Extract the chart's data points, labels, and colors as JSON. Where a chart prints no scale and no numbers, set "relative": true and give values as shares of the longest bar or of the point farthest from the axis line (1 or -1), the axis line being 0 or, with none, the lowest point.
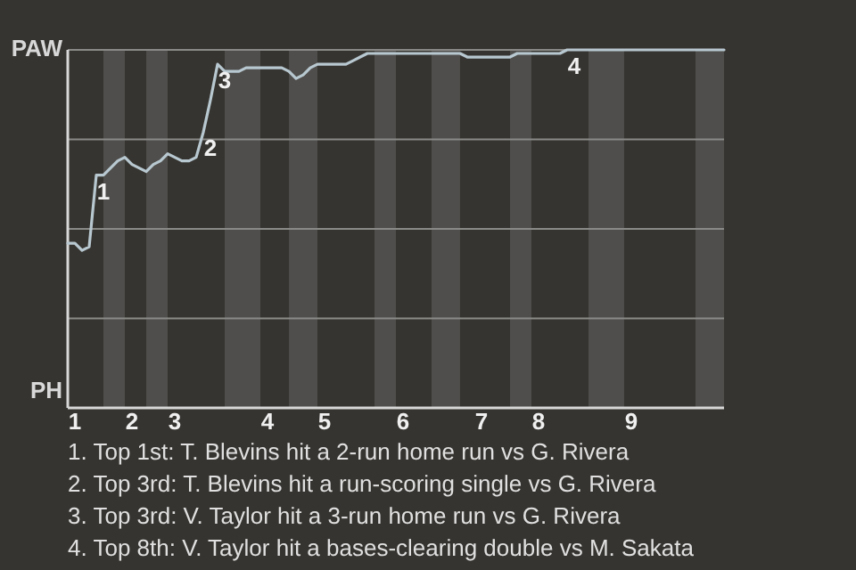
{
  "chart_data": {
    "type": "line",
    "relative": true,
    "categories": [
      null,
      "1",
      null,
      null,
      null,
      null,
      null,
      null,
      null,
      "2",
      null,
      null,
      null,
      null,
      null,
      "3",
      null,
      null,
      null,
      null,
      null,
      null,
      null,
      null,
      null,
      null,
      null,
      null,
      "4",
      null,
      null,
      null,
      null,
      null,
      null,
      null,
      "5",
      null,
      null,
      null,
      null,
      null,
      null,
      null,
      null,
      null,
      null,
      "6",
      null,
      null,
      null,
      null,
      null,
      null,
      null,
      null,
      null,
      null,
      "7",
      null,
      null,
      null,
      null,
      null,
      null,
      null,
      "8",
      null,
      null,
      null,
      null,
      null,
      null,
      null,
      null,
      null,
      null,
      null,
      null,
      "9",
      null,
      null,
      null,
      null,
      null,
      null,
      null,
      null,
      null,
      null,
      null,
      null,
      null
    ],
    "ylabel": "PAW",
    "xlabel": "PH",
    "grid": "y",
    "series": [
      {
        "color": "#b8c8d0",
        "values": [
          0.46,
          0.46,
          0.44,
          0.45,
          0.65,
          0.65,
          0.67,
          0.69,
          0.7,
          0.68,
          0.67,
          0.66,
          0.68,
          0.69,
          0.71,
          0.7,
          0.69,
          0.69,
          0.7,
          0.77,
          0.86,
          0.96,
          0.94,
          0.94,
          0.94,
          0.95,
          0.95,
          0.95,
          0.95,
          0.95,
          0.95,
          0.94,
          0.92,
          0.93,
          0.95,
          0.96,
          0.96,
          0.96,
          0.96,
          0.96,
          0.97,
          0.98,
          0.99,
          0.99,
          0.99,
          0.99,
          0.99,
          0.99,
          0.99,
          0.99,
          0.99,
          0.99,
          0.99,
          0.99,
          0.99,
          0.99,
          0.98,
          0.98,
          0.98,
          0.98,
          0.98,
          0.98,
          0.98,
          0.99,
          0.99,
          0.99,
          0.99,
          0.99,
          0.99,
          0.99,
          1,
          1,
          1,
          1,
          1,
          1,
          1,
          1,
          1,
          1,
          1,
          1,
          1,
          1,
          1,
          1,
          1,
          1,
          1,
          1,
          1,
          1,
          1
        ]
      }
    ],
    "annotations": [
      {
        "text": "1",
        "y": 0.65
      },
      {
        "text": "2",
        "y": 0.77
      },
      {
        "text": "3",
        "y": 0.96
      },
      {
        "text": "4",
        "y": 1
      },
      "1. Top 1st: T. Blevins hit a 2-run home run vs G. Rivera",
      "2. Top 3rd: T. Blevins hit a run-scoring single vs G. Rivera",
      "3. Top 3rd: V. Taylor hit a 3-run home run vs G. Rivera",
      "4. Top 8th: V. Taylor hit a bases-clearing double vs M. Sakata"
    ]
  }
}
